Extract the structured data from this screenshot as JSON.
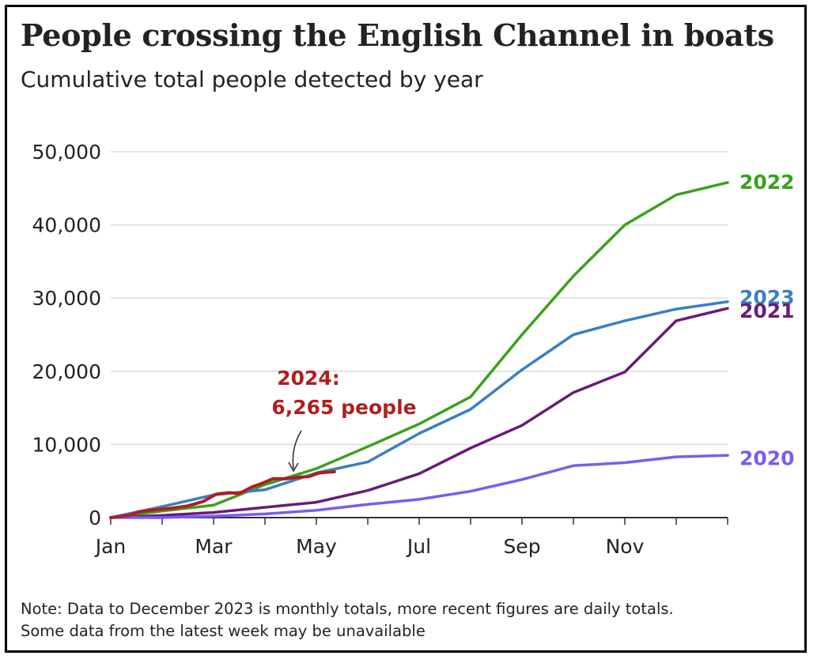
{
  "title": "People crossing the English Channel in boats",
  "subtitle": "Cumulative total people detected by year",
  "note_line1": "Note: Data to December 2023 is monthly totals, more recent figures are daily totals.",
  "note_line2": "Some data from the latest week may be unavailable",
  "chart_data": {
    "type": "line",
    "title": "People crossing the English Channel in boats",
    "subtitle": "Cumulative total people detected by year",
    "xlabel": "",
    "ylabel": "",
    "x_ticks": [
      "Jan",
      "Mar",
      "May",
      "Jul",
      "Sep",
      "Nov"
    ],
    "y_ticks": [
      "0",
      "10,000",
      "20,000",
      "30,000",
      "40,000",
      "50,000"
    ],
    "y_tick_values": [
      0,
      10000,
      20000,
      30000,
      40000,
      50000
    ],
    "ylim": [
      0,
      50000
    ],
    "grid": "horizontal",
    "x_unit": "months from start of year",
    "xlim": [
      0,
      12
    ],
    "series": [
      {
        "name": "2022",
        "color": "#3aa21c",
        "x": [
          0,
          1,
          2,
          3,
          4,
          5,
          6,
          7,
          8,
          9,
          10,
          11,
          12
        ],
        "values": [
          0,
          900,
          1700,
          4500,
          6700,
          9700,
          12800,
          16500,
          25000,
          33000,
          40000,
          44100,
          45800
        ]
      },
      {
        "name": "2023",
        "color": "#3a7fc1",
        "x": [
          0,
          1,
          2,
          3,
          4,
          5,
          6,
          7,
          8,
          9,
          10,
          11,
          12
        ],
        "values": [
          0,
          1500,
          3100,
          3800,
          6100,
          7600,
          11500,
          14800,
          20200,
          25000,
          26900,
          28500,
          29500
        ]
      },
      {
        "name": "2021",
        "color": "#6a1b78",
        "x": [
          0,
          1,
          2,
          3,
          4,
          5,
          6,
          7,
          8,
          9,
          10,
          11,
          12
        ],
        "values": [
          0,
          300,
          700,
          1400,
          2100,
          3700,
          6000,
          9500,
          12600,
          17100,
          19900,
          26900,
          28600
        ]
      },
      {
        "name": "2020",
        "color": "#7b5cf0",
        "x": [
          0,
          1,
          2,
          3,
          4,
          5,
          6,
          7,
          8,
          9,
          10,
          11,
          12
        ],
        "values": [
          0,
          0,
          200,
          500,
          1000,
          1800,
          2500,
          3600,
          5200,
          7100,
          7500,
          8300,
          8500
        ]
      },
      {
        "name": "2024",
        "color": "#b01e1e",
        "x": [
          0,
          0.35,
          0.55,
          0.9,
          1.2,
          1.5,
          1.8,
          2.05,
          2.3,
          2.5,
          2.75,
          2.95,
          3.15,
          3.4,
          3.6,
          3.85,
          4.05,
          4.2,
          4.35
        ],
        "values": [
          0,
          300,
          800,
          1100,
          1300,
          1600,
          2200,
          3200,
          3400,
          3300,
          4200,
          4700,
          5300,
          5300,
          5500,
          5600,
          6100,
          6200,
          6265
        ]
      }
    ],
    "annotations": [
      {
        "line1": "2024:",
        "line2": "6,265 people",
        "target_series": "2024"
      }
    ]
  }
}
